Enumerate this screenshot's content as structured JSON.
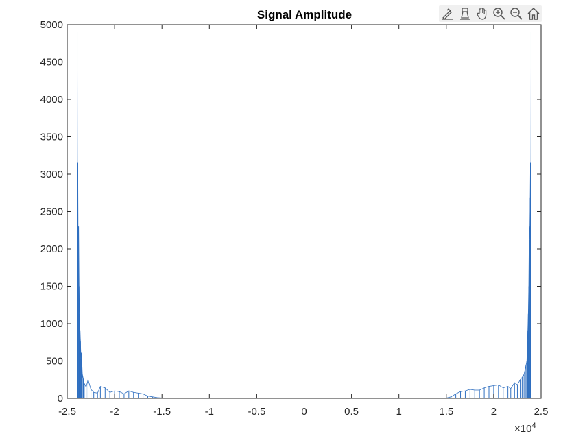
{
  "toolbar": {
    "icons": [
      "brush-edit-icon",
      "data-tips-icon",
      "pan-hand-icon",
      "zoom-in-icon",
      "zoom-out-icon",
      "home-restore-icon"
    ]
  },
  "chart_data": {
    "type": "line",
    "title": "Signal Amplitude",
    "xlabel": "",
    "ylabel": "",
    "xlim": [
      -25000,
      25000
    ],
    "ylim": [
      0,
      5000
    ],
    "x_exponent_label": "×10",
    "x_exponent_power": "4",
    "x_ticks": [
      -25000,
      -20000,
      -15000,
      -10000,
      -5000,
      0,
      5000,
      10000,
      15000,
      20000,
      25000
    ],
    "x_tick_labels": [
      "-2.5",
      "-2",
      "-1.5",
      "-1",
      "-0.5",
      "0",
      "0.5",
      "1",
      "1.5",
      "2",
      "2.5"
    ],
    "y_ticks": [
      0,
      500,
      1000,
      1500,
      2000,
      2500,
      3000,
      3500,
      4000,
      4500,
      5000
    ],
    "y_tick_labels": [
      "0",
      "500",
      "1000",
      "1500",
      "2000",
      "2500",
      "3000",
      "3500",
      "4000",
      "4500",
      "5000"
    ],
    "grid": false,
    "color": "#2f6fc0",
    "series": [
      {
        "x": [
          -23950,
          -23920,
          -23880,
          -23850,
          -23800,
          -23750,
          -23700,
          -23650,
          -23600,
          -23550,
          -23500,
          -23400,
          -23300,
          -23200,
          -23000,
          -22800,
          -22500,
          -22200,
          -21800,
          -21500,
          -21000,
          -20500,
          -20000,
          -19500,
          -19000,
          -18500,
          -18000,
          -17500,
          -17000,
          -16500,
          -16000,
          -15500,
          -15000,
          -14500,
          -14000,
          -10000,
          -5000,
          0,
          5000,
          10000,
          14000,
          14500,
          15000,
          15500,
          16000,
          16500,
          17000,
          17500,
          18000,
          18500,
          19000,
          19500,
          20000,
          20500,
          21000,
          21500,
          21800,
          22200,
          22500,
          22800,
          23000,
          23200,
          23300,
          23400,
          23500,
          23550,
          23600,
          23650,
          23700,
          23750,
          23800,
          23850,
          23880,
          23920,
          23950
        ],
        "y": [
          4900,
          2680,
          3150,
          2120,
          2300,
          1500,
          1130,
          900,
          760,
          530,
          610,
          320,
          260,
          200,
          150,
          250,
          120,
          80,
          70,
          160,
          140,
          80,
          100,
          90,
          60,
          100,
          80,
          70,
          60,
          30,
          20,
          10,
          5,
          2,
          0,
          0,
          0,
          0,
          0,
          0,
          0,
          2,
          5,
          20,
          60,
          90,
          100,
          120,
          110,
          110,
          140,
          160,
          170,
          180,
          140,
          160,
          130,
          210,
          180,
          250,
          280,
          320,
          380,
          440,
          500,
          760,
          900,
          1130,
          1500,
          2300,
          2120,
          2680,
          3150,
          2680,
          4900
        ]
      }
    ]
  }
}
